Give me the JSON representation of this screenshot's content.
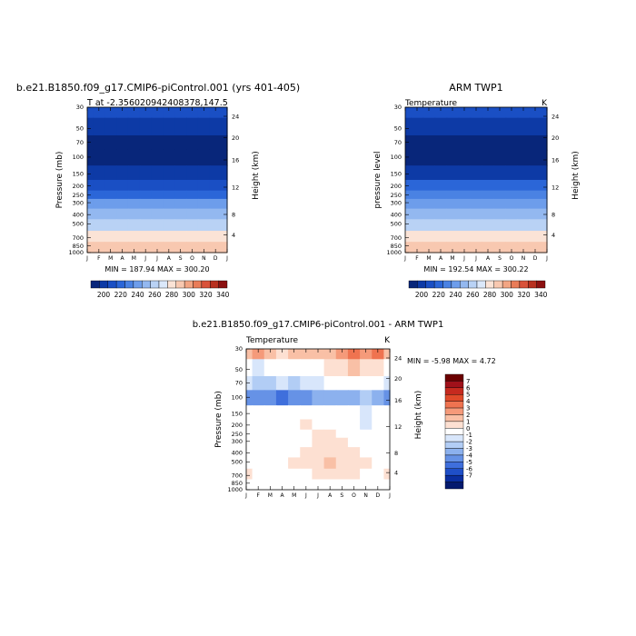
{
  "chart_data": [
    {
      "type": "heatmap",
      "title": "b.e21.B1850.f09_g17.CMIP6-piControl.001 (yrs 401-405)",
      "subtitle_left": "T at -2.356020942408378,147.5",
      "subtitle_right": "",
      "ylabel": "Pressure (mb)",
      "ylabel_right": "Height (km)",
      "stats": "MIN = 187.94 MAX = 300.20",
      "x_ticks": [
        "J",
        "F",
        "M",
        "A",
        "M",
        "J",
        "J",
        "A",
        "S",
        "O",
        "N",
        "D",
        "J"
      ],
      "pressure_ticks": [
        "30",
        "50",
        "70",
        "100",
        "150",
        "200",
        "250",
        "300",
        "400",
        "500",
        "700",
        "850",
        "1000"
      ],
      "height_ticks": [
        "24",
        "20",
        "16",
        "12",
        "8",
        "4"
      ],
      "colorbar": [
        "200",
        "220",
        "240",
        "260",
        "280",
        "300",
        "320",
        "340"
      ],
      "palette": [
        "#08267a",
        "#0d3aa6",
        "#1a4fc4",
        "#2b66d8",
        "#4a82e3",
        "#6d9deb",
        "#93b8f0",
        "#b9d2f5",
        "#dbe8fa",
        "#fbe3d6",
        "#f8c8b0",
        "#f2a583",
        "#e97c58",
        "#d9523a",
        "#b8301f",
        "#8c1010"
      ],
      "ylim_mb": [
        30,
        1000
      ],
      "months": [
        "J",
        "F",
        "M",
        "A",
        "M",
        "J",
        "J",
        "A",
        "S",
        "O",
        "N",
        "D",
        "J"
      ],
      "values_by_level": {
        "30": [
          214,
          214,
          214,
          214,
          214,
          214,
          214,
          214,
          214,
          214,
          214,
          214,
          214
        ],
        "50": [
          205,
          205,
          204,
          204,
          203,
          203,
          203,
          203,
          203,
          204,
          204,
          205,
          205
        ],
        "70": [
          198,
          198,
          197,
          197,
          196,
          196,
          196,
          196,
          196,
          197,
          197,
          198,
          198
        ],
        "100": [
          193,
          193,
          193,
          193,
          193,
          193,
          193,
          193,
          193,
          193,
          193,
          193,
          193
        ],
        "150": [
          206,
          206,
          206,
          206,
          206,
          206,
          206,
          206,
          206,
          206,
          206,
          206,
          206
        ],
        "200": [
          219,
          219,
          219,
          219,
          219,
          219,
          219,
          219,
          219,
          219,
          219,
          219,
          219
        ],
        "250": [
          229,
          229,
          229,
          229,
          229,
          229,
          229,
          229,
          229,
          229,
          229,
          229,
          229
        ],
        "300": [
          240,
          240,
          240,
          240,
          240,
          240,
          240,
          240,
          240,
          240,
          240,
          240,
          240
        ],
        "400": [
          257,
          257,
          257,
          257,
          257,
          257,
          257,
          257,
          257,
          257,
          257,
          257,
          257
        ],
        "500": [
          268,
          268,
          268,
          268,
          268,
          268,
          268,
          268,
          268,
          268,
          268,
          268,
          268
        ],
        "700": [
          283,
          283,
          283,
          283,
          283,
          283,
          283,
          283,
          283,
          283,
          283,
          283,
          283
        ],
        "850": [
          293,
          293,
          293,
          293,
          293,
          293,
          293,
          293,
          293,
          293,
          293,
          293,
          293
        ],
        "1000": [
          299,
          299,
          299,
          299,
          299,
          299,
          299,
          299,
          299,
          299,
          299,
          299,
          299
        ]
      }
    },
    {
      "type": "heatmap",
      "title": "ARM TWP1",
      "subtitle_left": "Temperature",
      "subtitle_right": "K",
      "ylabel": "pressure level",
      "ylabel_right": "Height (km)",
      "stats": "MIN = 192.54 MAX = 300.22",
      "x_ticks": [
        "J",
        "F",
        "M",
        "A",
        "M",
        "J",
        "J",
        "A",
        "S",
        "O",
        "N",
        "D",
        "J"
      ],
      "pressure_ticks": [
        "30",
        "50",
        "70",
        "100",
        "150",
        "200",
        "250",
        "300",
        "400",
        "500",
        "700",
        "850",
        "1000"
      ],
      "height_ticks": [
        "24",
        "20",
        "16",
        "12",
        "8",
        "4"
      ],
      "colorbar": [
        "200",
        "220",
        "240",
        "260",
        "280",
        "300",
        "320",
        "340"
      ],
      "palette": [
        "#08267a",
        "#0d3aa6",
        "#1a4fc4",
        "#2b66d8",
        "#4a82e3",
        "#6d9deb",
        "#93b8f0",
        "#b9d2f5",
        "#dbe8fa",
        "#fbe3d6",
        "#f8c8b0",
        "#f2a583",
        "#e97c58",
        "#d9523a",
        "#b8301f",
        "#8c1010"
      ],
      "ylim_mb": [
        30,
        1000
      ],
      "months": [
        "J",
        "F",
        "M",
        "A",
        "M",
        "J",
        "J",
        "A",
        "S",
        "O",
        "N",
        "D",
        "J"
      ],
      "values_by_level": {
        "30": [
          216,
          216,
          216,
          216,
          216,
          216,
          216,
          216,
          216,
          216,
          216,
          216,
          216
        ],
        "50": [
          207,
          207,
          206,
          206,
          205,
          205,
          205,
          206,
          206,
          206,
          207,
          207,
          207
        ],
        "70": [
          199,
          199,
          198,
          198,
          197,
          197,
          196,
          196,
          197,
          198,
          198,
          199,
          199
        ],
        "100": [
          194,
          194,
          194,
          194,
          194,
          194,
          194,
          194,
          194,
          194,
          194,
          194,
          194
        ],
        "150": [
          207,
          207,
          207,
          207,
          207,
          207,
          207,
          207,
          207,
          207,
          207,
          207,
          207
        ],
        "200": [
          220,
          220,
          220,
          220,
          220,
          220,
          220,
          220,
          220,
          220,
          220,
          220,
          220
        ],
        "250": [
          230,
          230,
          230,
          230,
          230,
          230,
          230,
          230,
          230,
          230,
          230,
          230,
          230
        ],
        "300": [
          241,
          241,
          241,
          241,
          241,
          241,
          241,
          241,
          241,
          241,
          241,
          241,
          241
        ],
        "400": [
          258,
          258,
          258,
          258,
          258,
          258,
          258,
          258,
          258,
          258,
          258,
          258,
          258
        ],
        "500": [
          268,
          268,
          268,
          268,
          268,
          268,
          268,
          268,
          268,
          268,
          268,
          268,
          268
        ],
        "700": [
          283,
          283,
          283,
          283,
          283,
          283,
          283,
          283,
          283,
          283,
          283,
          283,
          283
        ],
        "850": [
          293,
          293,
          293,
          293,
          293,
          293,
          293,
          293,
          293,
          293,
          293,
          293,
          293
        ],
        "1000": [
          299,
          299,
          299,
          299,
          299,
          299,
          299,
          299,
          299,
          299,
          299,
          299,
          299
        ]
      }
    },
    {
      "type": "heatmap",
      "title": "b.e21.B1850.f09_g17.CMIP6-piControl.001 - ARM TWP1",
      "subtitle_left": "Temperature",
      "subtitle_right": "K",
      "ylabel": "Pressure (mb)",
      "ylabel_right": "Height (km)",
      "stats": "MIN = -5.98 MAX = 4.72",
      "x_ticks": [
        "J",
        "F",
        "M",
        "A",
        "M",
        "J",
        "J",
        "A",
        "S",
        "O",
        "N",
        "D",
        "J"
      ],
      "pressure_ticks": [
        "30",
        "50",
        "70",
        "100",
        "150",
        "200",
        "250",
        "300",
        "400",
        "500",
        "700",
        "850",
        "1000"
      ],
      "height_ticks": [
        "24",
        "20",
        "16",
        "12",
        "8",
        "4"
      ],
      "colorbar": [
        "7",
        "6",
        "5",
        "4",
        "3",
        "2",
        "1",
        "0",
        "-1",
        "-2",
        "-3",
        "-4",
        "-5",
        "-6",
        "-7"
      ],
      "palette": [
        "#6b0000",
        "#a0111a",
        "#c62a1f",
        "#e04a2a",
        "#ef7350",
        "#f59a7a",
        "#f9c0a6",
        "#fde0d2",
        "#ffffff",
        "#d8e6fb",
        "#b2cdf5",
        "#8cb1ee",
        "#6692e6",
        "#3f6fdc",
        "#1f4fc8",
        "#0a2ea0",
        "#051a6e"
      ],
      "ylim_mb": [
        30,
        1000
      ],
      "months": [
        "J",
        "F",
        "M",
        "A",
        "M",
        "J",
        "J",
        "A",
        "S",
        "O",
        "N",
        "D",
        "J"
      ],
      "values_by_level": {
        "30": [
          1.5,
          2,
          1,
          0.5,
          1.5,
          1,
          1,
          1.5,
          2.5,
          3.5,
          2.5,
          3.5,
          1.5
        ],
        "50": [
          -1,
          -1.5,
          -1,
          -0.5,
          -1,
          -1,
          -0.5,
          0,
          0.5,
          1,
          0.5,
          0.5,
          -1
        ],
        "70": [
          -2,
          -2.5,
          -3,
          -2,
          -2.5,
          -2,
          -1.5,
          -1,
          -0.5,
          -0.5,
          -1,
          -0.5,
          -2
        ],
        "100": [
          -5,
          -4.5,
          -5,
          -5.5,
          -4.5,
          -4.5,
          -4,
          -4,
          -3.5,
          -3.5,
          -3,
          -3.5,
          -5
        ],
        "150": [
          -0.5,
          -1,
          -1,
          -1,
          -0.5,
          -0.5,
          -1,
          -0.5,
          -0.5,
          -1,
          -1.5,
          -1,
          -0.5
        ],
        "200": [
          -0.5,
          -0.5,
          -0.5,
          -0.5,
          -0.5,
          0,
          -0.5,
          -0.5,
          -0.5,
          -0.5,
          -1.5,
          -0.5,
          -0.5
        ],
        "250": [
          -0.5,
          -0.5,
          -0.5,
          -0.5,
          -0.5,
          -0.5,
          0,
          0,
          -0.5,
          -0.5,
          -1,
          -0.5,
          -0.5
        ],
        "300": [
          -0.5,
          -0.5,
          -0.5,
          -0.5,
          -0.5,
          -0.5,
          0,
          0.5,
          0,
          -0.5,
          -0.5,
          -0.5,
          -0.5
        ],
        "400": [
          -0.5,
          -0.5,
          -0.5,
          -0.5,
          -0.5,
          0,
          0.5,
          0.5,
          0.5,
          0,
          -0.5,
          -0.5,
          -0.5
        ],
        "500": [
          -0.5,
          -0.5,
          -0.5,
          -0.5,
          0,
          0.5,
          0.5,
          1,
          0.5,
          0.5,
          0,
          -0.5,
          -0.5
        ],
        "700": [
          0,
          -0.5,
          -0.5,
          -0.5,
          -0.5,
          -0.5,
          0,
          0.5,
          0,
          0,
          -0.5,
          -0.5,
          0
        ],
        "850": [
          -0.5,
          -0.5,
          -0.5,
          -0.5,
          -0.5,
          -0.5,
          -0.5,
          -0.5,
          -0.5,
          -0.5,
          -0.5,
          -0.5,
          -0.5
        ],
        "1000": [
          -0.5,
          -0.5,
          -0.5,
          -0.5,
          -0.5,
          -0.5,
          -0.5,
          -0.5,
          -0.5,
          -0.5,
          -0.5,
          -0.5,
          -0.5
        ]
      }
    }
  ]
}
